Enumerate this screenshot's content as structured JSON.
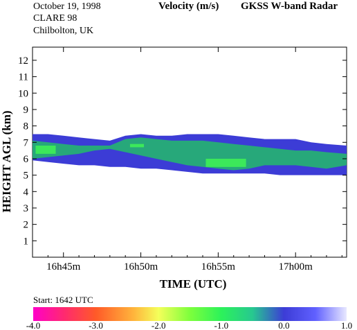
{
  "header": {
    "date": "October  19, 1998",
    "campaign": "CLARE 98",
    "location": "Chilbolton, UK",
    "quantity": "Velocity (m/s)",
    "instrument": "GKSS  W-band Radar"
  },
  "colorbar": {
    "start_label": "Start: 1642 UTC",
    "ticks": [
      "-4.0",
      "-3.0",
      "-2.0",
      "-1.0",
      "0.0",
      "1.0"
    ],
    "range": [
      -4.0,
      1.0
    ],
    "stops": [
      {
        "v": -4.0,
        "c": "#ff00c8"
      },
      {
        "v": -3.5,
        "c": "#ff2a6e"
      },
      {
        "v": -3.0,
        "c": "#ff5a28"
      },
      {
        "v": -2.4,
        "c": "#ffb43c"
      },
      {
        "v": -2.0,
        "c": "#f4ff5a"
      },
      {
        "v": -1.5,
        "c": "#7dff3c"
      },
      {
        "v": -1.0,
        "c": "#2cf25a"
      },
      {
        "v": -0.5,
        "c": "#27c890"
      },
      {
        "v": 0.0,
        "c": "#3c3cd6"
      },
      {
        "v": 0.5,
        "c": "#6060ff"
      },
      {
        "v": 1.0,
        "c": "#e8e8ff"
      }
    ]
  },
  "chart_data": {
    "type": "heatmap",
    "title": "Velocity (m/s)",
    "xlabel": "TIME (UTC)",
    "ylabel": "HEIGHT AGL (km)",
    "x_ticks": [
      "16h45m",
      "16h50m",
      "16h55m",
      "17h00m"
    ],
    "x_tick_values_min": [
      1005,
      1010,
      1015,
      1020
    ],
    "xlim_min": [
      1003,
      1023.3
    ],
    "y_ticks": [
      1,
      2,
      3,
      4,
      5,
      6,
      7,
      8,
      9,
      10,
      11,
      12
    ],
    "ylim": [
      0,
      12.8
    ],
    "colors": {
      "ascent_or_still": "#3c3cd6",
      "slow_fall": "#27a87a",
      "fast_fall": "#3ce85a"
    },
    "cloud_layer": {
      "time_min": [
        1003,
        1004,
        1005,
        1006,
        1007,
        1008,
        1009,
        1010,
        1011,
        1012,
        1013,
        1014,
        1015,
        1016,
        1017,
        1018,
        1019,
        1020,
        1021,
        1022,
        1023.3
      ],
      "top_km": [
        7.5,
        7.5,
        7.4,
        7.3,
        7.2,
        7.1,
        7.4,
        7.5,
        7.4,
        7.4,
        7.5,
        7.5,
        7.5,
        7.4,
        7.3,
        7.2,
        7.2,
        7.2,
        7.0,
        6.9,
        6.8
      ],
      "base_km": [
        5.9,
        5.8,
        5.7,
        5.6,
        5.6,
        5.5,
        5.5,
        5.4,
        5.4,
        5.3,
        5.2,
        5.1,
        5.1,
        5.1,
        5.1,
        5.1,
        5.0,
        5.0,
        5.0,
        5.0,
        5.0
      ],
      "velocity_core_top_km": [
        7.1,
        7.0,
        6.9,
        6.8,
        6.8,
        6.8,
        7.2,
        7.3,
        7.2,
        7.1,
        7.1,
        7.1,
        7.0,
        6.9,
        6.8,
        6.7,
        6.6,
        6.5,
        6.5,
        6.4,
        6.3
      ],
      "velocity_core_base_km": [
        6.0,
        6.1,
        6.2,
        6.3,
        6.5,
        6.6,
        6.4,
        6.2,
        6.0,
        5.8,
        5.6,
        5.5,
        5.4,
        5.3,
        5.4,
        5.6,
        5.6,
        5.6,
        5.5,
        5.4,
        5.6
      ]
    }
  }
}
